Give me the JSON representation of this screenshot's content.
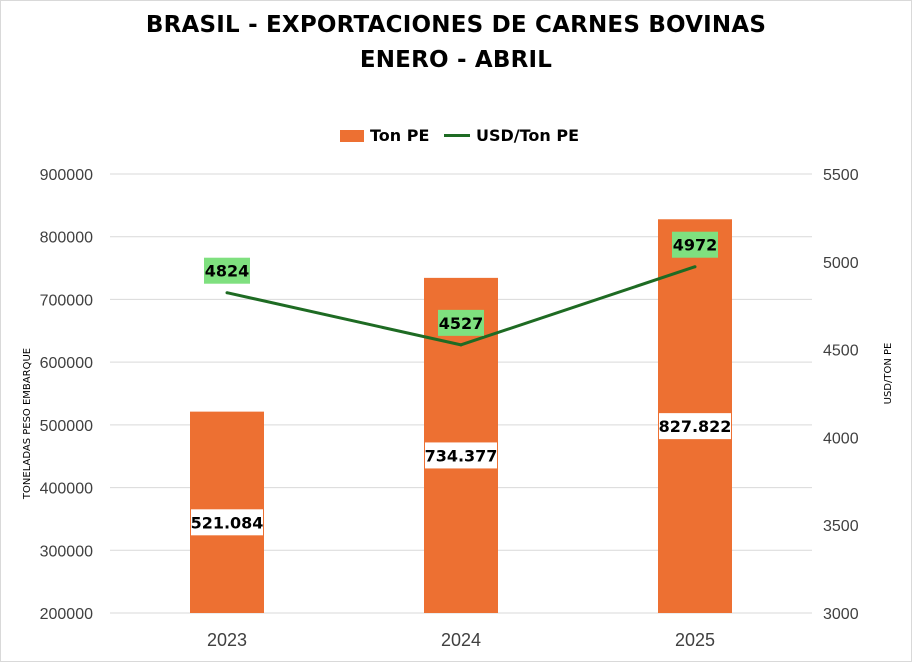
{
  "chart_data": {
    "type": "bar",
    "title": "BRASIL - EXPORTACIONES DE CARNES BOVINAS",
    "subtitle": "ENERO - ABRIL",
    "categories": [
      "2023",
      "2024",
      "2025"
    ],
    "series": [
      {
        "name": "Ton PE",
        "type": "bar",
        "axis": "left",
        "color": "#ed7032",
        "values": [
          521084,
          734377,
          827822
        ],
        "data_labels": [
          "521.084",
          "734.377",
          "827.822"
        ]
      },
      {
        "name": "USD/Ton PE",
        "type": "line",
        "axis": "right",
        "color": "#1e6b23",
        "label_background": "#7fe07f",
        "values": [
          4824,
          4527,
          4972
        ],
        "data_labels": [
          "4824",
          "4527",
          "4972"
        ]
      }
    ],
    "ylabel": "TONELADAS PESO EMBARQUE",
    "ylabel_right": "USD/TON PE",
    "ylim": [
      200000,
      900000
    ],
    "ylim_right": [
      3000,
      5500
    ],
    "yticks": [
      "200000",
      "300000",
      "400000",
      "500000",
      "600000",
      "700000",
      "800000",
      "900000"
    ],
    "yticks_right": [
      "3000",
      "3500",
      "4000",
      "4500",
      "5000",
      "5500"
    ],
    "legend_position": "top",
    "grid": true
  }
}
